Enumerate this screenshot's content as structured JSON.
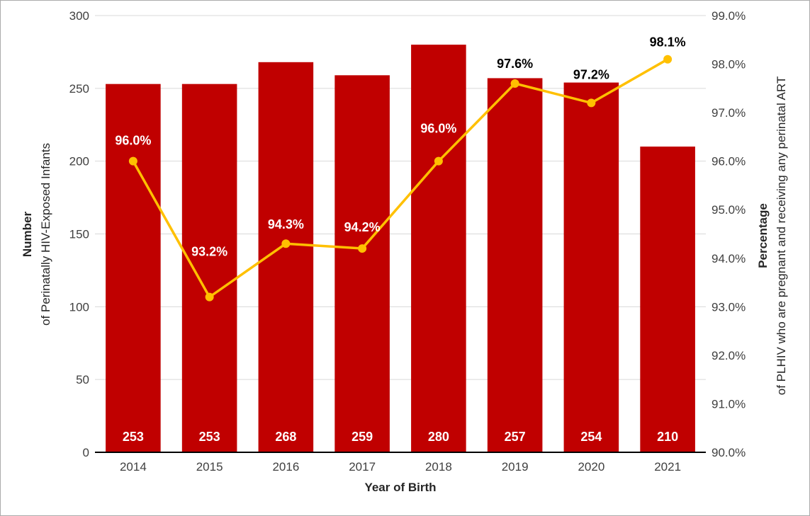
{
  "chart_data": {
    "type": "combo-bar-line",
    "categories": [
      "2014",
      "2015",
      "2016",
      "2017",
      "2018",
      "2019",
      "2020",
      "2021"
    ],
    "series": [
      {
        "name": "Number of Perinatally HIV-Exposed Infants",
        "type": "bar",
        "axis": "left",
        "values": [
          253,
          253,
          268,
          259,
          280,
          257,
          254,
          210
        ],
        "labels": [
          "253",
          "253",
          "268",
          "259",
          "280",
          "257",
          "254",
          "210"
        ],
        "color": "#C00000",
        "label_color": "#FFFFFF"
      },
      {
        "name": "Percentage of PLHIV who are pregnant and receiving any perinatal ART",
        "type": "line",
        "axis": "right",
        "values": [
          96.0,
          93.2,
          94.3,
          94.2,
          96.0,
          97.6,
          97.2,
          98.1
        ],
        "labels": [
          "96.0%",
          "93.2%",
          "94.3%",
          "94.2%",
          "96.0%",
          "97.6%",
          "97.2%",
          "98.1%"
        ],
        "color": "#FFC000",
        "label_colors": [
          "#FFFFFF",
          "#FFFFFF",
          "#FFFFFF",
          "#FFFFFF",
          "#FFFFFF",
          "#000000",
          "#000000",
          "#000000"
        ]
      }
    ],
    "xlabel": "Year of Birth",
    "ylabel_left": {
      "bold": "Number",
      "rest": "of Perinatally HIV-Exposed Infants"
    },
    "ylabel_right": {
      "bold": "Percentage",
      "rest": "of PLHIV who are pregnant and receiving any perinatal ART"
    },
    "axis_left": {
      "min": 0,
      "max": 300,
      "ticks": [
        "0",
        "50",
        "100",
        "150",
        "200",
        "250",
        "300"
      ]
    },
    "axis_right": {
      "min": 90,
      "max": 99,
      "ticks": [
        "90.0%",
        "91.0%",
        "92.0%",
        "93.0%",
        "94.0%",
        "95.0%",
        "96.0%",
        "97.0%",
        "98.0%",
        "99.0%"
      ]
    },
    "grid": true,
    "legend": "none",
    "colors": {
      "gridline": "#D9D9D9",
      "axis_line": "#000000",
      "tick_text": "#404040",
      "title_text": "#262626"
    }
  }
}
